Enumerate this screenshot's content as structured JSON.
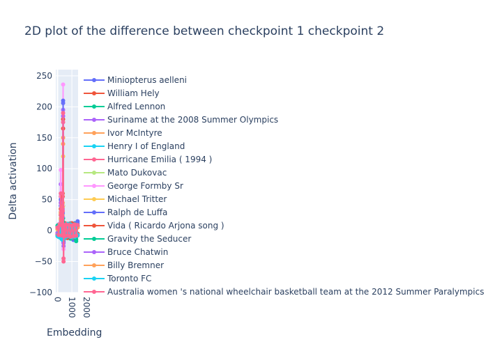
{
  "chart_data": {
    "type": "line",
    "title": "2D plot of the difference between checkpoint 1 checkpoint 2",
    "xlabel": "Embedding",
    "ylabel": "Delta activation",
    "xlim": [
      -120,
      1430
    ],
    "ylim": [
      -100,
      260
    ],
    "x_ticks": [
      0,
      1000,
      2000
    ],
    "x_tick_labels": [
      "0",
      "1000",
      "2000"
    ],
    "y_ticks": [
      -100,
      -50,
      0,
      50,
      100,
      150,
      200,
      250
    ],
    "y_tick_labels": [
      "−100",
      "−50",
      "0",
      "50",
      "100",
      "150",
      "200",
      "250"
    ],
    "grid": true,
    "legend_position": "right",
    "series": [
      {
        "name": "Miniopterus aelleni",
        "color": "#636efa",
        "x": [
          0,
          80,
          150,
          230,
          300,
          360,
          390,
          420,
          450,
          520,
          600,
          700,
          800,
          900,
          1000,
          1100,
          1200,
          1300,
          1400
        ],
        "values": [
          3,
          -7,
          6,
          40,
          -5,
          20,
          206,
          -20,
          9,
          -8,
          7,
          -12,
          10,
          -9,
          8,
          -15,
          12,
          -10,
          15
        ]
      },
      {
        "name": "William Hely",
        "color": "#EF553B",
        "x": [
          0,
          80,
          150,
          230,
          300,
          360,
          390,
          420,
          450,
          520,
          600,
          700,
          800,
          900,
          1000,
          1100,
          1200,
          1300,
          1400
        ],
        "values": [
          -4,
          8,
          -6,
          25,
          10,
          60,
          180,
          -10,
          5,
          12,
          -9,
          11,
          -7,
          10,
          -12,
          9,
          -8,
          7,
          -5
        ]
      },
      {
        "name": "Alfred Lennon",
        "color": "#00cc96",
        "x": [
          0,
          80,
          150,
          230,
          300,
          360,
          390,
          420,
          450,
          520,
          600,
          700,
          800,
          900,
          1000,
          1100,
          1200,
          1300,
          1400
        ],
        "values": [
          5,
          -9,
          7,
          -6,
          12,
          -14,
          20,
          -12,
          8,
          -10,
          9,
          -11,
          6,
          -13,
          10,
          -8,
          11,
          -17,
          9
        ]
      },
      {
        "name": "Suriname at the 2008 Summer Olympics",
        "color": "#ab63fa",
        "x": [
          0,
          80,
          150,
          230,
          300,
          360,
          390,
          420,
          450,
          520,
          600,
          700,
          800,
          900,
          1000,
          1100,
          1200,
          1300,
          1400
        ],
        "values": [
          -6,
          10,
          -4,
          75,
          -8,
          35,
          195,
          -25,
          7,
          -9,
          10,
          -7,
          8,
          -10,
          9,
          -6,
          7,
          -9,
          8
        ]
      },
      {
        "name": "Ivor McIntyre",
        "color": "#FFA15A",
        "x": [
          0,
          80,
          150,
          230,
          300,
          360,
          390,
          420,
          450,
          520,
          600,
          700,
          800,
          900,
          1000,
          1100,
          1200,
          1300,
          1400
        ],
        "values": [
          2,
          -5,
          9,
          30,
          -7,
          45,
          150,
          -15,
          10,
          -6,
          8,
          -9,
          7,
          -8,
          10,
          -7,
          6,
          -10,
          5
        ]
      },
      {
        "name": "Henry I of England",
        "color": "#19d3f3",
        "x": [
          0,
          80,
          150,
          230,
          300,
          360,
          390,
          420,
          450,
          520,
          600,
          700,
          800,
          900,
          1000,
          1100,
          1200,
          1300,
          1400
        ],
        "values": [
          -8,
          6,
          -10,
          12,
          -14,
          9,
          -16,
          11,
          -9,
          8,
          -12,
          10,
          -8,
          12,
          -10,
          9,
          -11,
          8,
          -7
        ]
      },
      {
        "name": "Hurricane Emilia ( 1994 )",
        "color": "#FF6692",
        "x": [
          0,
          80,
          150,
          230,
          300,
          360,
          390,
          420,
          450,
          520,
          600,
          700,
          800,
          900,
          1000,
          1100,
          1200,
          1300,
          1400
        ],
        "values": [
          4,
          -3,
          10,
          55,
          -10,
          30,
          175,
          -50,
          6,
          -8,
          9,
          -10,
          7,
          -6,
          8,
          -9,
          7,
          -8,
          6
        ]
      },
      {
        "name": "Mato Dukovac",
        "color": "#B6E880",
        "x": [
          0,
          80,
          150,
          230,
          300,
          360,
          390,
          420,
          450,
          520,
          600,
          700,
          800,
          900,
          1000,
          1100,
          1200,
          1300,
          1400
        ],
        "values": [
          -3,
          7,
          -5,
          18,
          -9,
          14,
          40,
          -8,
          6,
          -7,
          8,
          -6,
          9,
          -8,
          7,
          -9,
          6,
          -7,
          8
        ]
      },
      {
        "name": "George Formby Sr",
        "color": "#FF97FF",
        "x": [
          0,
          80,
          150,
          230,
          300,
          360,
          390,
          420,
          450,
          520,
          600,
          700,
          800,
          900,
          1000,
          1100,
          1200,
          1300,
          1400
        ],
        "values": [
          6,
          -4,
          8,
          98,
          -6,
          40,
          236,
          -30,
          9,
          -5,
          7,
          -8,
          6,
          -9,
          8,
          -6,
          7,
          -5,
          6
        ]
      },
      {
        "name": "Michael Tritter",
        "color": "#FECB52",
        "x": [
          0,
          80,
          150,
          230,
          300,
          360,
          390,
          420,
          450,
          520,
          600,
          700,
          800,
          900,
          1000,
          1100,
          1200,
          1300,
          1400
        ],
        "values": [
          -5,
          9,
          -7,
          20,
          -8,
          25,
          120,
          -12,
          7,
          -9,
          8,
          -10,
          9,
          -7,
          10,
          -8,
          9,
          -6,
          7
        ]
      },
      {
        "name": "Ralph de Luffa",
        "color": "#636efa",
        "x": [
          0,
          80,
          150,
          230,
          300,
          360,
          390,
          420,
          450,
          520,
          600,
          700,
          800,
          900,
          1000,
          1100,
          1200,
          1300,
          1400
        ],
        "values": [
          7,
          -8,
          5,
          50,
          -9,
          28,
          210,
          -18,
          8,
          -10,
          6,
          -9,
          10,
          -8,
          7,
          -10,
          8,
          -9,
          12
        ]
      },
      {
        "name": "Vida ( Ricardo Arjona song )",
        "color": "#EF553B",
        "x": [
          0,
          80,
          150,
          230,
          300,
          360,
          390,
          420,
          450,
          520,
          600,
          700,
          800,
          900,
          1000,
          1100,
          1200,
          1300,
          1400
        ],
        "values": [
          -7,
          5,
          -9,
          35,
          12,
          55,
          165,
          -14,
          10,
          -11,
          9,
          -12,
          11,
          -10,
          12,
          -11,
          10,
          -9,
          8
        ]
      },
      {
        "name": "Gravity the Seducer",
        "color": "#00cc96",
        "x": [
          0,
          80,
          150,
          230,
          300,
          360,
          390,
          420,
          450,
          520,
          600,
          700,
          800,
          900,
          1000,
          1100,
          1200,
          1300,
          1400
        ],
        "values": [
          8,
          -10,
          6,
          -12,
          9,
          -8,
          14,
          -11,
          7,
          -9,
          10,
          -8,
          9,
          -11,
          8,
          -10,
          9,
          -14,
          7
        ]
      },
      {
        "name": "Bruce Chatwin",
        "color": "#ab63fa",
        "x": [
          0,
          80,
          150,
          230,
          300,
          360,
          390,
          420,
          450,
          520,
          600,
          700,
          800,
          900,
          1000,
          1100,
          1200,
          1300,
          1400
        ],
        "values": [
          -4,
          6,
          -8,
          45,
          -6,
          22,
          185,
          -20,
          6,
          -8,
          7,
          -9,
          8,
          -7,
          9,
          -8,
          7,
          -8,
          6
        ]
      },
      {
        "name": "Billy Bremner",
        "color": "#FFA15A",
        "x": [
          0,
          80,
          150,
          230,
          300,
          360,
          390,
          420,
          450,
          520,
          600,
          700,
          800,
          900,
          1000,
          1100,
          1200,
          1300,
          1400
        ],
        "values": [
          3,
          -6,
          8,
          28,
          -5,
          38,
          140,
          -10,
          8,
          -7,
          9,
          -6,
          8,
          -9,
          7,
          -8,
          6,
          -7,
          5
        ]
      },
      {
        "name": "Toronto FC",
        "color": "#19d3f3",
        "x": [
          0,
          80,
          150,
          230,
          300,
          360,
          390,
          420,
          450,
          520,
          600,
          700,
          800,
          900,
          1000,
          1100,
          1200,
          1300,
          1400
        ],
        "values": [
          -9,
          7,
          -11,
          10,
          -13,
          8,
          -15,
          10,
          -12,
          9,
          -10,
          11,
          -9,
          10,
          -11,
          8,
          -10,
          9,
          -8
        ]
      },
      {
        "name": "Australia women 's national wheelchair basketball team at the 2012 Summer Paralympics",
        "color": "#FF6692",
        "x": [
          0,
          80,
          150,
          230,
          300,
          360,
          390,
          420,
          450,
          520,
          600,
          700,
          800,
          900,
          1000,
          1100,
          1200,
          1300,
          1400
        ],
        "values": [
          5,
          -7,
          9,
          60,
          -8,
          32,
          190,
          -45,
          8,
          -9,
          10,
          -8,
          9,
          -10,
          8,
          -9,
          10,
          -8,
          9
        ]
      }
    ]
  }
}
